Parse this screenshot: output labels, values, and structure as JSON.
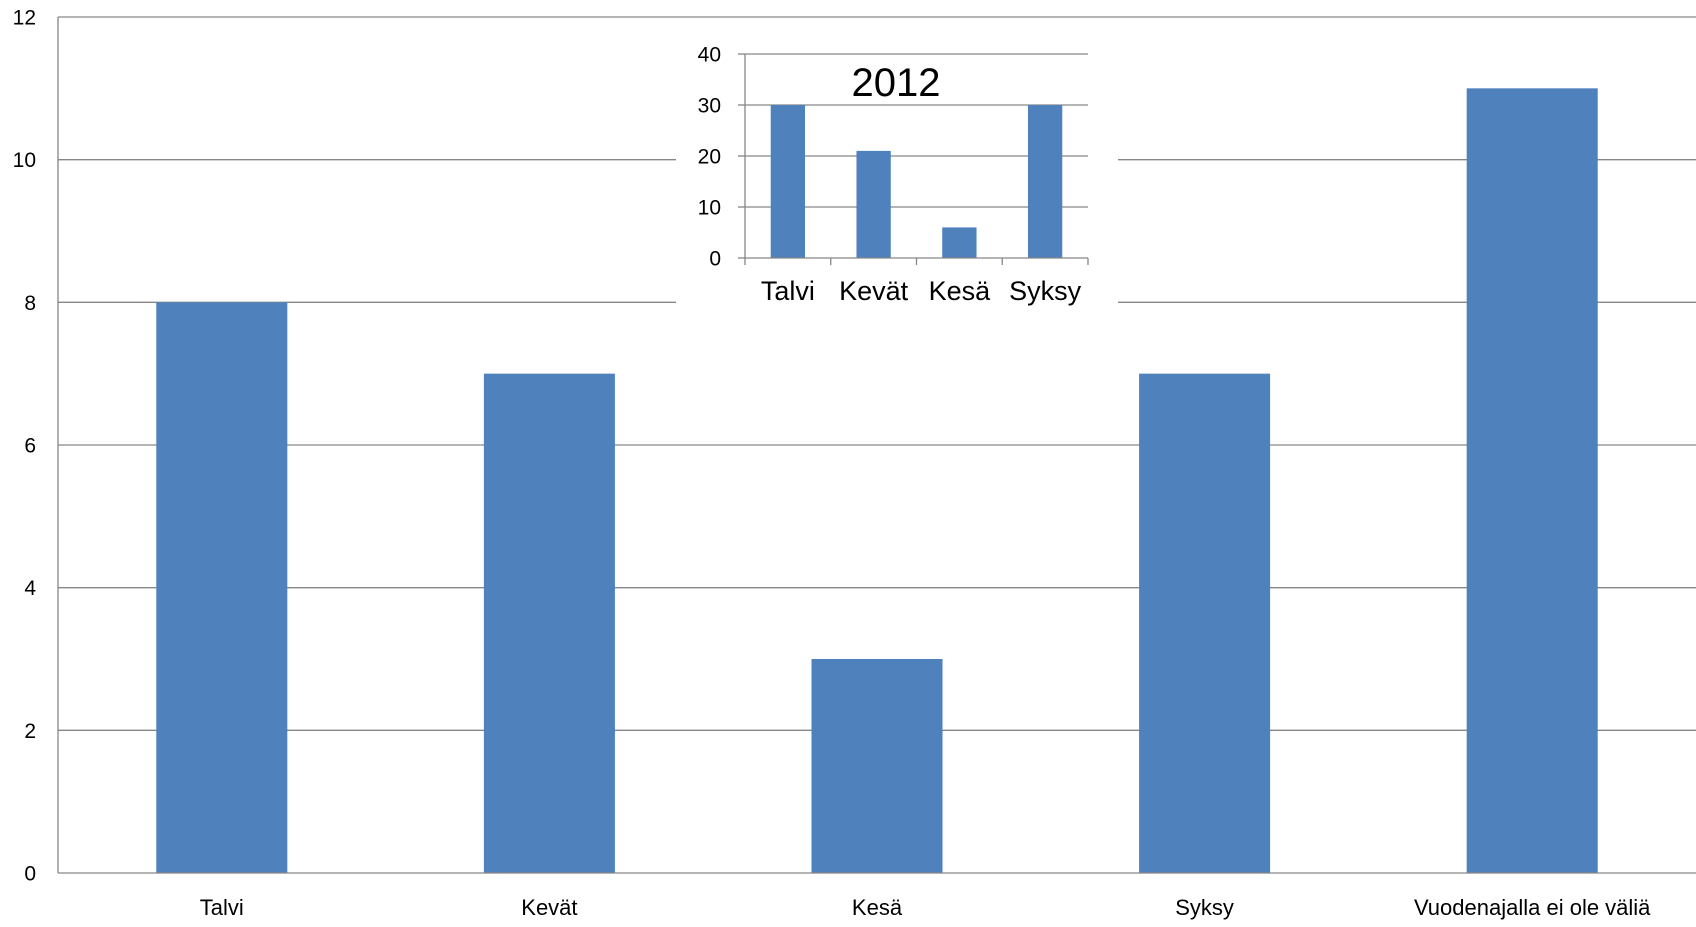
{
  "chart_data": [
    {
      "type": "bar",
      "title": "",
      "xlabel": "",
      "ylabel": "",
      "categories": [
        "Talvi",
        "Kevät",
        "Kesä",
        "Syksy",
        "Vuodenajalla ei ole väliä"
      ],
      "values": [
        8,
        7,
        3,
        7,
        11
      ],
      "ylim": [
        0,
        12
      ],
      "yticks": [
        0,
        2,
        4,
        6,
        8,
        10,
        12
      ],
      "grid": true,
      "legend": "none",
      "colors": {
        "bar": "#4F81BD",
        "grid": "#868686",
        "axis": "#868686"
      }
    },
    {
      "type": "bar",
      "title": "2012",
      "xlabel": "",
      "ylabel": "",
      "categories": [
        "Talvi",
        "Kevät",
        "Kesä",
        "Syksy"
      ],
      "values": [
        30,
        21,
        6,
        30
      ],
      "ylim": [
        0,
        40
      ],
      "yticks": [
        0,
        10,
        20,
        30,
        40
      ],
      "grid": true,
      "legend": "none",
      "placement": "inset top-center",
      "colors": {
        "bar": "#4F81BD",
        "grid": "#868686",
        "axis": "#868686"
      }
    }
  ]
}
